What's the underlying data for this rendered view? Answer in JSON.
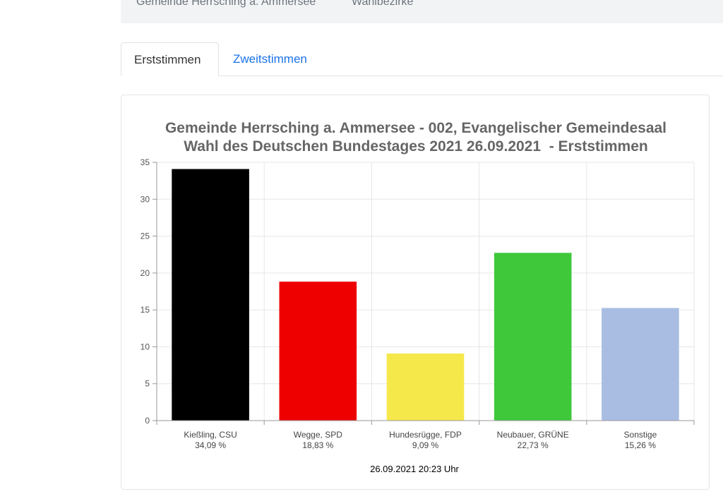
{
  "breadcrumb": {
    "municipality": "Gemeinde Herrsching a. Ammersee",
    "section": "Wahlbezirke"
  },
  "tabs": [
    {
      "label": "Erststimmen",
      "active": true
    },
    {
      "label": "Zweitstimmen",
      "active": false
    }
  ],
  "chart_data": {
    "type": "bar",
    "title_line1": "Gemeinde Herrsching a. Ammersee - 002, Evangelischer Gemeindesaal",
    "title_line2": "Wahl des Deutschen Bundestages 2021 26.09.2021  - Erststimmen",
    "categories": [
      "Kießling, CSU",
      "Wegge, SPD",
      "Hundesrügge, FDP",
      "Neubauer, GRÜNE",
      "Sonstige"
    ],
    "category_percent_labels": [
      "34,09 %",
      "18,83 %",
      "9,09 %",
      "22,73 %",
      "15,26 %"
    ],
    "values": [
      34.09,
      18.83,
      9.09,
      22.73,
      15.26
    ],
    "colors": [
      "#000000",
      "#ee0000",
      "#f5e84a",
      "#3ec83a",
      "#a9bde3"
    ],
    "ylim": [
      0,
      35
    ],
    "yticks": [
      0,
      5,
      10,
      15,
      20,
      25,
      30,
      35
    ],
    "grid": true,
    "footer": "26.09.2021 20:23 Uhr"
  }
}
